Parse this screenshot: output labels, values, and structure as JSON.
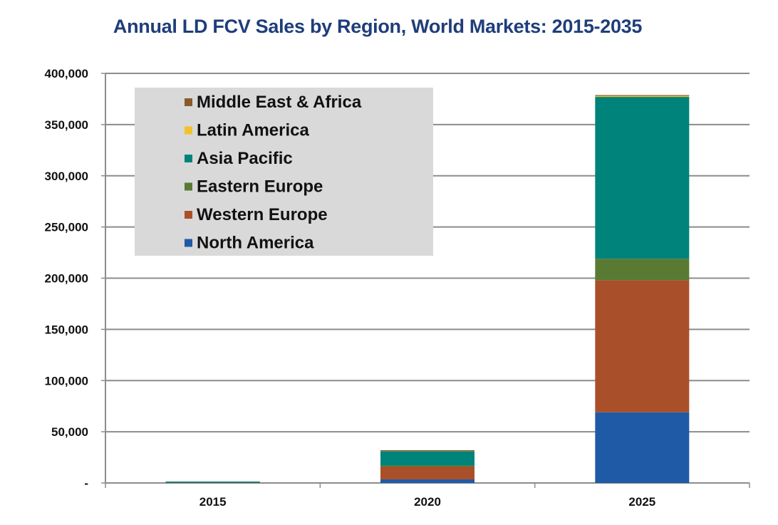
{
  "chart_data": {
    "type": "bar",
    "stacked": true,
    "title": "Annual LD FCV Sales by Region, World Markets: 2015-2035",
    "xlabel": "",
    "ylabel": "",
    "ylim": [
      0,
      400000
    ],
    "yticks": [
      0,
      50000,
      100000,
      150000,
      200000,
      250000,
      300000,
      350000,
      400000
    ],
    "ytick_labels": [
      "-",
      "50,000",
      "100,000",
      "150,000",
      "200,000",
      "250,000",
      "300,000",
      "350,000",
      "400,000"
    ],
    "categories": [
      "2015",
      "2020",
      "2025"
    ],
    "grid": true,
    "legend_position": "top-left",
    "series": [
      {
        "name": "North America",
        "color": "#1f5aa6",
        "values": [
          200,
          3500,
          69000
        ]
      },
      {
        "name": "Western Europe",
        "color": "#a9502a",
        "values": [
          300,
          12500,
          129000
        ]
      },
      {
        "name": "Eastern Europe",
        "color": "#5a7a34",
        "values": [
          50,
          1000,
          21000
        ]
      },
      {
        "name": "Asia Pacific",
        "color": "#00837a",
        "values": [
          700,
          14000,
          158000
        ]
      },
      {
        "name": "Latin America",
        "color": "#f2c12e",
        "values": [
          0,
          200,
          1000
        ]
      },
      {
        "name": "Middle East & Africa",
        "color": "#8b5a2b",
        "values": [
          0,
          100,
          500
        ]
      }
    ],
    "legend_order": [
      "Middle East & Africa",
      "Latin America",
      "Asia Pacific",
      "Eastern Europe",
      "Western Europe",
      "North America"
    ]
  },
  "colors": {
    "title": "#1f3d7a",
    "grid": "#8c8c8c",
    "legend_bg": "#d9d9d9"
  }
}
